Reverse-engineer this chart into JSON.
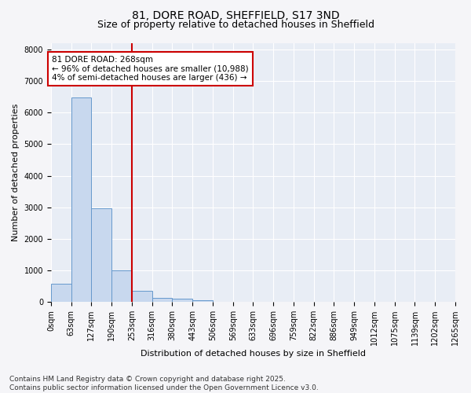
{
  "title_line1": "81, DORE ROAD, SHEFFIELD, S17 3ND",
  "title_line2": "Size of property relative to detached houses in Sheffield",
  "xlabel": "Distribution of detached houses by size in Sheffield",
  "ylabel": "Number of detached properties",
  "bin_labels": [
    "0sqm",
    "63sqm",
    "127sqm",
    "190sqm",
    "253sqm",
    "316sqm",
    "380sqm",
    "443sqm",
    "506sqm",
    "569sqm",
    "633sqm",
    "696sqm",
    "759sqm",
    "822sqm",
    "886sqm",
    "949sqm",
    "1012sqm",
    "1075sqm",
    "1139sqm",
    "1202sqm",
    "1265sqm"
  ],
  "bar_values": [
    580,
    6480,
    2980,
    1000,
    350,
    140,
    100,
    60,
    0,
    0,
    0,
    0,
    0,
    0,
    0,
    0,
    0,
    0,
    0,
    0
  ],
  "bar_color": "#c8d8ee",
  "bar_edge_color": "#6699cc",
  "fig_background_color": "#f5f5f8",
  "ax_background_color": "#e8edf5",
  "grid_color": "#ffffff",
  "vline_x": 4,
  "vline_color": "#cc0000",
  "annotation_text": "81 DORE ROAD: 268sqm\n← 96% of detached houses are smaller (10,988)\n4% of semi-detached houses are larger (436) →",
  "annotation_box_color": "#cc0000",
  "ylim": [
    0,
    8200
  ],
  "yticks": [
    0,
    1000,
    2000,
    3000,
    4000,
    5000,
    6000,
    7000,
    8000
  ],
  "footer": "Contains HM Land Registry data © Crown copyright and database right 2025.\nContains public sector information licensed under the Open Government Licence v3.0.",
  "title_fontsize": 10,
  "subtitle_fontsize": 9,
  "axis_label_fontsize": 8,
  "tick_fontsize": 7,
  "annotation_fontsize": 7.5,
  "footer_fontsize": 6.5
}
